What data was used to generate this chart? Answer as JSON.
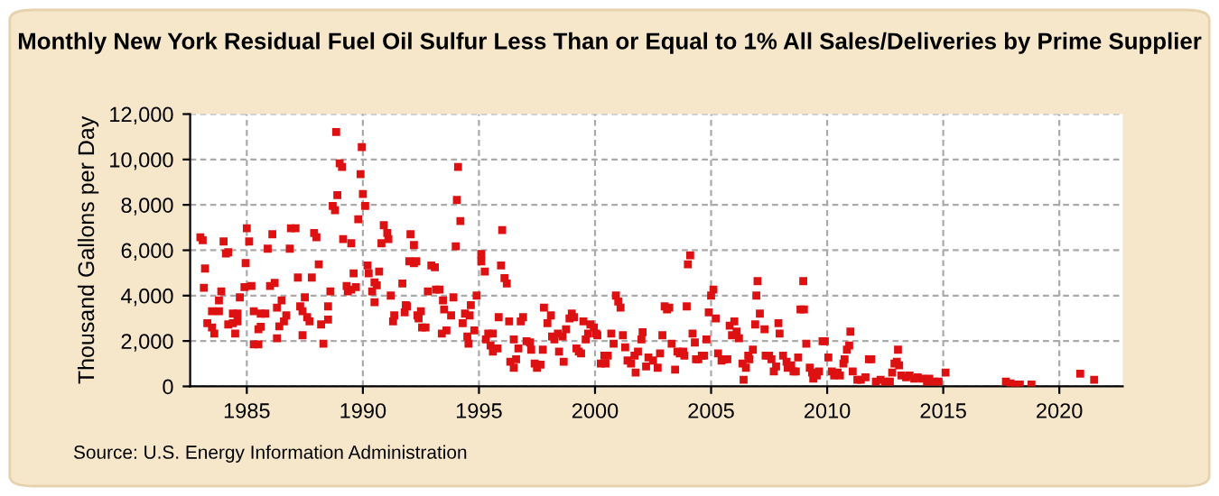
{
  "chart_data": {
    "type": "scatter",
    "title": "Monthly New York Residual Fuel Oil Sulfur Less Than or Equal to 1% All Sales/Deliveries by Prime Supplier",
    "ylabel": "Thousand Gallons per Day",
    "annotations": [
      "Source: U.S. Energy Information Administration"
    ],
    "xlim": [
      1982.56,
      2022.73
    ],
    "ylim": [
      0,
      12000
    ],
    "xticks": [
      1985,
      1990,
      1995,
      2000,
      2005,
      2010,
      2015,
      2020
    ],
    "yticks": [
      {
        "value": 0,
        "label": "0"
      },
      {
        "value": 2000,
        "label": "2,000"
      },
      {
        "value": 4000,
        "label": "4,000"
      },
      {
        "value": 6000,
        "label": "6,000"
      },
      {
        "value": 8000,
        "label": "8,000"
      },
      {
        "value": 10000,
        "label": "10,000"
      },
      {
        "value": 12000,
        "label": "12,000"
      }
    ],
    "grid": true,
    "marker": "square",
    "series": [
      {
        "color": "#dd1111",
        "x": [
          1983.0,
          1983.1,
          1983.2,
          1983.15,
          1983.3,
          1983.5,
          1983.5,
          1983.6,
          1983.8,
          1983.8,
          1983.9,
          1984.0,
          1984.1,
          1984.2,
          1984.2,
          1984.4,
          1984.5,
          1984.4,
          1984.6,
          1984.6,
          1984.7,
          1984.9,
          1984.95,
          1985.0,
          1985.1,
          1985.2,
          1985.3,
          1985.3,
          1985.5,
          1985.5,
          1985.6,
          1985.6,
          1985.8,
          1985.9,
          1986.1,
          1986.2,
          1986.0,
          1986.3,
          1986.3,
          1986.4,
          1986.5,
          1986.6,
          1986.7,
          1986.85,
          1986.9,
          1987.1,
          1987.2,
          1987.3,
          1987.4,
          1987.4,
          1987.5,
          1987.6,
          1987.7,
          1987.8,
          1987.9,
          1988.0,
          1988.1,
          1988.2,
          1988.3,
          1988.5,
          1988.5,
          1988.6,
          1988.7,
          1988.8,
          1988.85,
          1988.9,
          1989.0,
          1989.1,
          1989.15,
          1989.3,
          1989.35,
          1989.5,
          1989.5,
          1989.6,
          1989.7,
          1989.8,
          1989.9,
          1989.95,
          1990.0,
          1990.1,
          1990.2,
          1990.25,
          1990.4,
          1990.5,
          1990.5,
          1990.6,
          1990.7,
          1990.8,
          1990.9,
          1991.05,
          1991.1,
          1991.2,
          1991.3,
          1991.35,
          1991.7,
          1991.85,
          1991.9,
          1991.8,
          1992.05,
          1992.2,
          1992.0,
          1992.2,
          1992.3,
          1992.35,
          1992.4,
          1992.55,
          1992.7,
          1992.5,
          1992.8,
          1992.95,
          1993.1,
          1993.15,
          1993.3,
          1993.4,
          1993.45,
          1993.5,
          1993.6,
          1993.8,
          1993.9,
          1994.0,
          1994.05,
          1994.1,
          1994.2,
          1994.3,
          1994.4,
          1994.5,
          1994.55,
          1994.6,
          1994.65,
          1994.8,
          1994.9,
          1995.1,
          1995.1,
          1995.25,
          1995.3,
          1995.4,
          1995.6,
          1995.5,
          1995.6,
          1995.8,
          1995.85,
          1995.95,
          1996.0,
          1996.1,
          1996.2,
          1996.3,
          1996.35,
          1996.5,
          1996.5,
          1996.6,
          1996.7,
          1996.8,
          1996.9,
          1997.05,
          1997.2,
          1997.25,
          1997.4,
          1997.5,
          1997.65,
          1997.75,
          1997.8,
          1997.95,
          1998.1,
          1998.15,
          1998.25,
          1998.4,
          1998.45,
          1998.6,
          1998.65,
          1998.75,
          1998.9,
          1999.0,
          1999.1,
          1999.2,
          1999.3,
          1999.4,
          1999.5,
          1999.6,
          1999.7,
          1999.8,
          1999.95,
          2000.05,
          2000.1,
          2000.25,
          2000.4,
          2000.45,
          2000.55,
          2000.7,
          2000.8,
          2000.9,
          2001.0,
          2001.1,
          2001.2,
          2001.3,
          2001.4,
          2001.55,
          2001.7,
          2001.75,
          2001.85,
          2002.0,
          2002.05,
          2002.2,
          2002.3,
          2002.5,
          2002.7,
          2002.8,
          2002.9,
          2003.0,
          2003.1,
          2003.2,
          2003.3,
          2003.45,
          2003.55,
          2003.65,
          2003.8,
          2003.85,
          2003.95,
          2004.0,
          2004.1,
          2004.2,
          2004.3,
          2004.35,
          2004.45,
          2004.6,
          2004.7,
          2004.8,
          2004.9,
          2005.0,
          2005.1,
          2005.2,
          2005.3,
          2005.45,
          2005.55,
          2005.7,
          2005.8,
          2005.9,
          2006.0,
          2006.1,
          2006.2,
          2006.35,
          2006.4,
          2006.5,
          2006.6,
          2006.65,
          2006.8,
          2006.9,
          2006.95,
          2007.0,
          2007.1,
          2007.3,
          2007.35,
          2007.5,
          2007.6,
          2007.7,
          2007.8,
          2007.9,
          2007.95,
          2008.1,
          2008.25,
          2008.3,
          2008.45,
          2008.55,
          2008.65,
          2008.75,
          2008.85,
          2008.97,
          2009.0,
          2009.1,
          2009.25,
          2009.35,
          2009.4,
          2009.55,
          2009.65,
          2009.8,
          2009.9,
          2010.05,
          2010.2,
          2010.3,
          2010.45,
          2010.55,
          2010.7,
          2010.75,
          2010.85,
          2010.95,
          2011.0,
          2011.1,
          2011.3,
          2011.45,
          2011.65,
          2011.8,
          2011.9,
          2012.1,
          2012.3,
          2012.5,
          2012.7,
          2012.8,
          2012.9,
          2013.0,
          2013.05,
          2013.1,
          2013.2,
          2013.4,
          2013.55,
          2013.75,
          2013.9,
          2014.1,
          2014.3,
          2014.4,
          2014.6,
          2014.8,
          2015.1,
          2017.7,
          2017.9,
          2018.1,
          2018.3,
          2018.8,
          2020.9,
          2021.5
        ],
        "values": [
          6572,
          6440,
          5194,
          4346,
          2783,
          3313,
          2597,
          2332,
          3313,
          3790,
          4187,
          6387,
          5857,
          5910,
          2730,
          2783,
          2332,
          3207,
          3207,
          2862,
          3922,
          4373,
          5433,
          6970,
          6387,
          4426,
          3313,
          1855,
          1855,
          2518,
          3207,
          2624,
          3207,
          6069,
          6705,
          4558,
          4426,
          3472,
          2120,
          2650,
          3790,
          2862,
          3127,
          6069,
          6970,
          6970,
          4797,
          3525,
          2253,
          3313,
          3922,
          3048,
          2862,
          4797,
          6758,
          6572,
          5380,
          2730,
          1882,
          2942,
          3525,
          4187,
          7950,
          7765,
          11210,
          8427,
          9832,
          9673,
          6493,
          4426,
          4187,
          6307,
          4267,
          4982,
          4373,
          7367,
          9355,
          10547,
          8480,
          7950,
          5327,
          4982,
          4187,
          4585,
          3710,
          4452,
          5062,
          6307,
          7102,
          6758,
          6493,
          4002,
          2862,
          3127,
          4532,
          3578,
          3525,
          3260,
          6705,
          6228,
          5512,
          5433,
          5512,
          3127,
          2995,
          2597,
          2597,
          3313,
          4187,
          5327,
          5247,
          4267,
          4267,
          2332,
          3790,
          3392,
          2465,
          3127,
          3922,
          6175,
          8215,
          9673,
          7288,
          2783,
          3207,
          2200,
          1882,
          3127,
          3578,
          2465,
          4002,
          5830,
          5512,
          5062,
          2067,
          2332,
          2332,
          1802,
          1537,
          1670,
          3048,
          5327,
          6890,
          4770,
          4532,
          2862,
          1087,
          2067,
          822,
          1192,
          1670,
          2862,
          3048,
          1988,
          1935,
          1617,
          1007,
          822,
          954,
          1617,
          3472,
          2783,
          3127,
          2200,
          2067,
          2332,
          1537,
          2200,
          1087,
          2518,
          2995,
          3207,
          3048,
          1670,
          1537,
          1457,
          2862,
          2067,
          2332,
          2730,
          2597,
          2332,
          2253,
          1007,
          1352,
          1007,
          1352,
          2332,
          1882,
          4002,
          3737,
          3472,
          2253,
          1722,
          1140,
          1007,
          1352,
          610,
          1537,
          2067,
          2385,
          875,
          1272,
          1140,
          822,
          1457,
          2253,
          3525,
          3392,
          3472,
          1882,
          742,
          1537,
          1457,
          1537,
          1352,
          3525,
          5380,
          5777,
          2332,
          1935,
          1192,
          1192,
          1352,
          1352,
          2067,
          3260,
          4002,
          4267,
          2995,
          1457,
          1140,
          1192,
          1192,
          2677,
          2253,
          2862,
          2412,
          2120,
          1007,
          292,
          822,
          1352,
          1192,
          1617,
          2730,
          4002,
          4638,
          3207,
          2518,
          1352,
          1352,
          1192,
          662,
          875,
          2783,
          2332,
          1352,
          1087,
          822,
          927,
          662,
          662,
          1272,
          3392,
          4638,
          3392,
          1882,
          822,
          610,
          345,
          477,
          662,
          1988,
          1988,
          1272,
          662,
          477,
          610,
          477,
          1007,
          1192,
          1617,
          1802,
          2412,
          662,
          292,
          292,
          397,
          1192,
          1192,
          212,
          292,
          212,
          212,
          610,
          1007,
          1087,
          1617,
          927,
          477,
          397,
          477,
          345,
          397,
          345,
          212,
          345,
          212,
          212,
          610,
          212,
          132,
          80,
          80,
          80,
          557,
          292
        ]
      }
    ]
  }
}
